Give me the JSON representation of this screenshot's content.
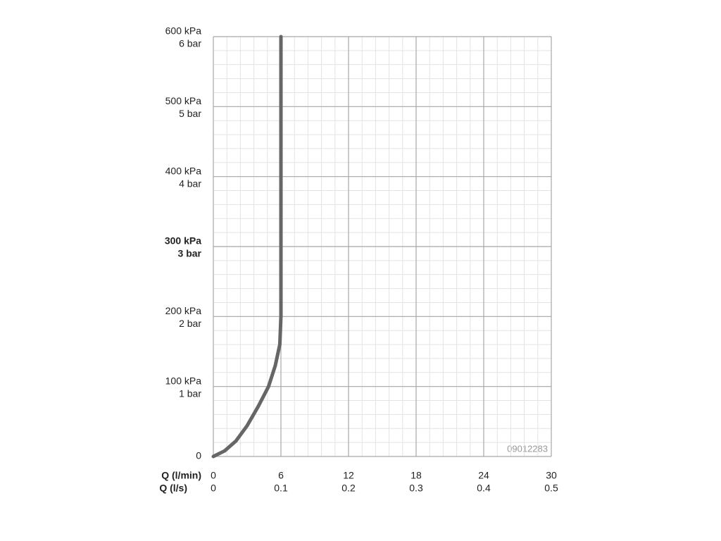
{
  "chart_data": {
    "type": "line",
    "xlabel": "Q (l/min)",
    "x2label": "Q (l/s)",
    "x": [
      0,
      1,
      2,
      3,
      4,
      4.9,
      5.5,
      5.9,
      6,
      6
    ],
    "series": [
      {
        "color": "#666666",
        "values": [
          0,
          8,
          22,
          44,
          72,
          100,
          130,
          160,
          200,
          600
        ]
      }
    ],
    "xlim": [
      0,
      30
    ],
    "xticks": [
      0,
      6,
      12,
      18,
      24,
      30
    ],
    "x2ticks": [
      0,
      0.1,
      0.2,
      0.3,
      0.4,
      0.5
    ],
    "ylim": [
      0,
      600
    ],
    "yticks": [
      0,
      {
        "value": 100,
        "label": "100 kPa"
      },
      {
        "value": 200,
        "label": "200 kPa"
      },
      {
        "value": 300,
        "label": "300 kPa"
      },
      {
        "value": 400,
        "label": "400 kPa"
      },
      {
        "value": 500,
        "label": "500 kPa"
      },
      {
        "value": 600,
        "label": "600 kPa"
      }
    ],
    "ytick_sublabels": [
      null,
      "1 bar",
      "2 bar",
      "3 bar",
      "4 bar",
      "5 bar",
      "6 bar"
    ],
    "bold_ytick": 300,
    "grid": true,
    "minor_grid": true,
    "annotation": "09012283"
  }
}
